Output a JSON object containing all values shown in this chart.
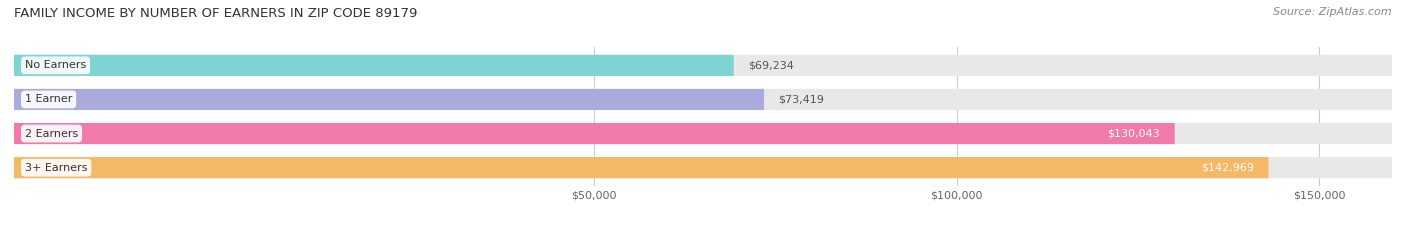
{
  "title": "FAMILY INCOME BY NUMBER OF EARNERS IN ZIP CODE 89179",
  "source": "Source: ZipAtlas.com",
  "categories": [
    "No Earners",
    "1 Earner",
    "2 Earners",
    "3+ Earners"
  ],
  "values": [
    69234,
    73419,
    130043,
    142969
  ],
  "bar_colors": [
    "#7DD4D0",
    "#AAAADD",
    "#F07AAA",
    "#F5B865"
  ],
  "bar_labels": [
    "$69,234",
    "$73,419",
    "$130,043",
    "$142,969"
  ],
  "xlim_min": -30000,
  "xlim_max": 160000,
  "xticks": [
    50000,
    100000,
    150000
  ],
  "xtick_labels": [
    "$50,000",
    "$100,000",
    "$150,000"
  ],
  "background_color": "#ffffff",
  "bar_bg_color": "#e8e8e8",
  "title_fontsize": 9.5,
  "source_fontsize": 8,
  "bar_height": 0.62,
  "n_bars": 4
}
